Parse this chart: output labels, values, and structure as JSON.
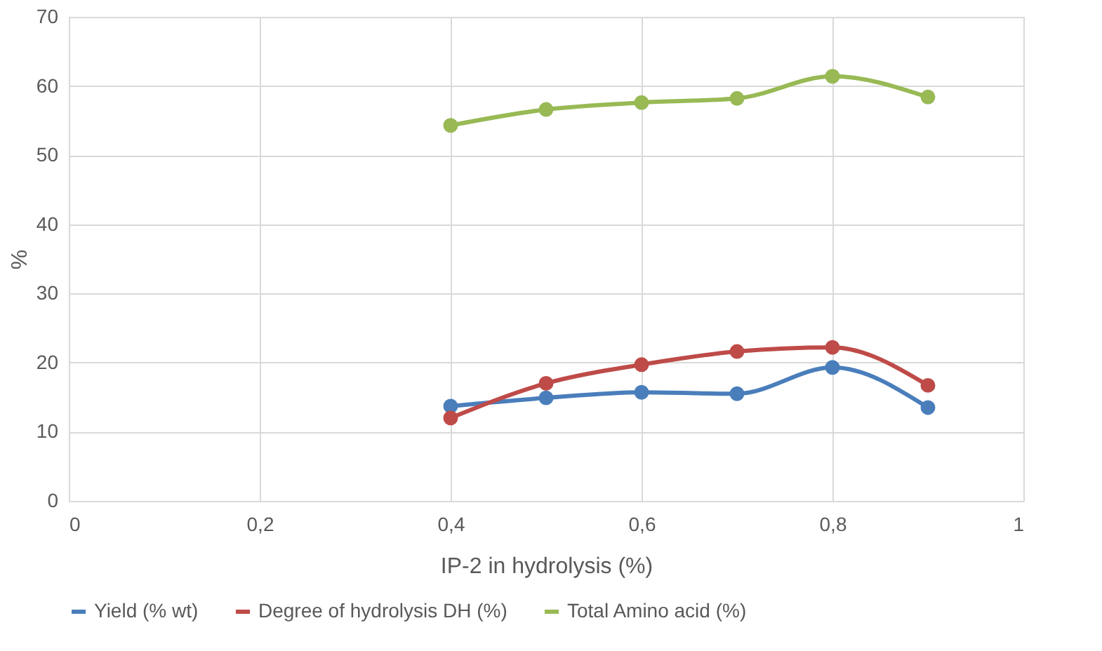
{
  "chart_data": {
    "type": "line",
    "xlabel": "IP-2 in hydrolysis (%)",
    "ylabel": "%",
    "x": [
      0.4,
      0.5,
      0.6,
      0.7,
      0.8,
      0.9
    ],
    "series": [
      {
        "name": "Yield (% wt)",
        "color": "#4a7ebb",
        "values": [
          13.7,
          14.9,
          15.7,
          15.5,
          19.3,
          13.5
        ]
      },
      {
        "name": "Degree of hydrolysis DH (%)",
        "color": "#be4b48",
        "values": [
          12.0,
          17.0,
          19.7,
          21.6,
          22.2,
          16.7
        ]
      },
      {
        "name": "Total Amino acid (%)",
        "color": "#98b954",
        "values": [
          54.3,
          56.6,
          57.6,
          58.2,
          61.4,
          58.4
        ]
      }
    ],
    "xlim": [
      0,
      1
    ],
    "xticks": [
      0,
      {
        "value": 0.2,
        "label": "0,2"
      },
      {
        "value": 0.4,
        "label": "0,4"
      },
      {
        "value": 0.6,
        "label": "0,6"
      },
      {
        "value": 0.8,
        "label": "0,8"
      },
      1
    ],
    "ylim": [
      0,
      70
    ],
    "yticks": [
      0,
      10,
      20,
      30,
      40,
      50,
      60,
      70
    ],
    "grid": true,
    "legend": "bottom",
    "marker": "circle",
    "line_style": "solid"
  }
}
